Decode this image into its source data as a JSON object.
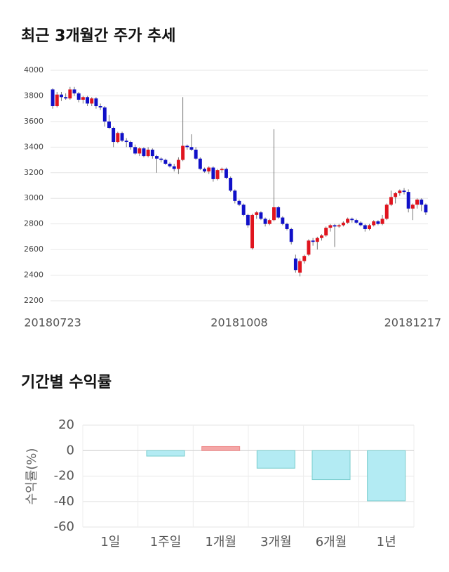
{
  "chart_data": [
    {
      "type": "candlestick",
      "title": "최근 3개월간 주가 추세",
      "categories": [
        "20180723",
        null,
        null,
        null,
        null,
        null,
        null,
        null,
        null,
        null,
        null,
        null,
        null,
        null,
        null,
        null,
        null,
        null,
        null,
        null,
        null,
        null,
        null,
        null,
        null,
        null,
        null,
        null,
        null,
        null,
        null,
        null,
        null,
        null,
        null,
        null,
        null,
        null,
        null,
        null,
        null,
        null,
        null,
        "20181008",
        null,
        null,
        null,
        null,
        null,
        null,
        null,
        null,
        null,
        null,
        null,
        null,
        null,
        null,
        null,
        null,
        null,
        null,
        null,
        null,
        null,
        null,
        null,
        null,
        null,
        null,
        null,
        null,
        null,
        null,
        null,
        null,
        null,
        null,
        null,
        null,
        null,
        null,
        null,
        "20181217",
        null,
        null,
        null
      ],
      "open": [
        3850,
        3720,
        3810,
        3790,
        3780,
        3850,
        3820,
        3770,
        3790,
        3740,
        3780,
        3720,
        3710,
        3600,
        3550,
        3440,
        3510,
        3450,
        3440,
        3400,
        3350,
        3390,
        3330,
        3380,
        3330,
        3310,
        3300,
        3270,
        3250,
        3230,
        3300,
        3410,
        3400,
        3380,
        3310,
        3230,
        3210,
        3240,
        3150,
        3220,
        3230,
        3160,
        3060,
        2980,
        2950,
        2870,
        2610,
        2870,
        2890,
        2840,
        2800,
        2830,
        2930,
        2850,
        2800,
        2760,
        2530,
        2420,
        2510,
        2560,
        2670,
        2660,
        2690,
        2710,
        2770,
        2790,
        2780,
        2790,
        2810,
        2840,
        2830,
        2810,
        2790,
        2760,
        2790,
        2820,
        2800,
        2840,
        2950,
        3010,
        3040,
        3060,
        3050,
        2920,
        2950,
        2990,
        2950
      ],
      "high": [
        3860,
        3830,
        3830,
        3820,
        3870,
        3870,
        3830,
        3800,
        3800,
        3790,
        3790,
        3740,
        3720,
        3650,
        3560,
        3520,
        3520,
        3470,
        3450,
        3420,
        3400,
        3400,
        3400,
        3390,
        3340,
        3320,
        3310,
        3280,
        3270,
        3320,
        3790,
        3420,
        3500,
        3400,
        3320,
        3240,
        3250,
        3250,
        3230,
        3240,
        3240,
        3170,
        3070,
        2990,
        2960,
        2880,
        2880,
        2900,
        2900,
        2850,
        2840,
        3540,
        2940,
        2860,
        2810,
        2770,
        2560,
        2530,
        2560,
        2680,
        2690,
        2700,
        2720,
        2780,
        2800,
        2800,
        2800,
        2820,
        2850,
        2850,
        2840,
        2820,
        2800,
        2800,
        2830,
        2830,
        2870,
        2960,
        3060,
        3050,
        3070,
        3080,
        3070,
        2960,
        3000,
        3000,
        2960
      ],
      "low": [
        3700,
        3710,
        3760,
        3770,
        3770,
        3800,
        3750,
        3740,
        3720,
        3720,
        3700,
        3690,
        3560,
        3540,
        3400,
        3430,
        3440,
        3400,
        3380,
        3340,
        3330,
        3320,
        3320,
        3310,
        3200,
        3280,
        3260,
        3240,
        3210,
        3190,
        3290,
        3380,
        3370,
        3300,
        3220,
        3200,
        3190,
        3130,
        3140,
        3200,
        3150,
        3050,
        2960,
        2940,
        2860,
        2770,
        2600,
        2840,
        2830,
        2780,
        2790,
        2820,
        2840,
        2790,
        2750,
        2640,
        2420,
        2390,
        2490,
        2550,
        2630,
        2600,
        2670,
        2700,
        2740,
        2620,
        2770,
        2780,
        2800,
        2810,
        2800,
        2780,
        2740,
        2750,
        2780,
        2790,
        2790,
        2830,
        2940,
        2960,
        3020,
        3030,
        2890,
        2830,
        2920,
        2900,
        2870
      ],
      "close": [
        3720,
        3810,
        3790,
        3780,
        3850,
        3820,
        3770,
        3790,
        3740,
        3780,
        3720,
        3710,
        3600,
        3550,
        3440,
        3510,
        3450,
        3440,
        3400,
        3350,
        3390,
        3330,
        3380,
        3330,
        3310,
        3300,
        3270,
        3250,
        3230,
        3300,
        3410,
        3400,
        3380,
        3310,
        3230,
        3210,
        3240,
        3150,
        3220,
        3230,
        3160,
        3060,
        2980,
        2950,
        2870,
        2790,
        2870,
        2890,
        2840,
        2800,
        2830,
        2930,
        2850,
        2800,
        2760,
        2660,
        2440,
        2510,
        2550,
        2670,
        2660,
        2690,
        2710,
        2770,
        2790,
        2780,
        2790,
        2810,
        2840,
        2830,
        2810,
        2790,
        2760,
        2790,
        2820,
        2800,
        2840,
        2950,
        3010,
        3040,
        3060,
        3050,
        2920,
        2950,
        2990,
        2950,
        2890
      ],
      "up_color": "#e0141e",
      "down_color": "#1010c8",
      "ylim": [
        2200,
        4000
      ],
      "yticks": [
        2200,
        2400,
        2600,
        2800,
        3000,
        3200,
        3400,
        3600,
        3800,
        4000
      ],
      "grid": true
    },
    {
      "type": "bar",
      "title": "기간별 수익률",
      "y_label": "수익률(%)",
      "categories": [
        "1일",
        "1주일",
        "1개월",
        "3개월",
        "6개월",
        "1년"
      ],
      "values": [
        0,
        -4.3,
        3.2,
        -13.8,
        -22.8,
        -39.5
      ],
      "positive_color": "#f4a7a7",
      "negative_color": "#b3ebf3",
      "ylim": [
        -60,
        20
      ],
      "yticks": [
        20,
        0,
        -20,
        -40,
        -60
      ],
      "grid": true
    }
  ]
}
